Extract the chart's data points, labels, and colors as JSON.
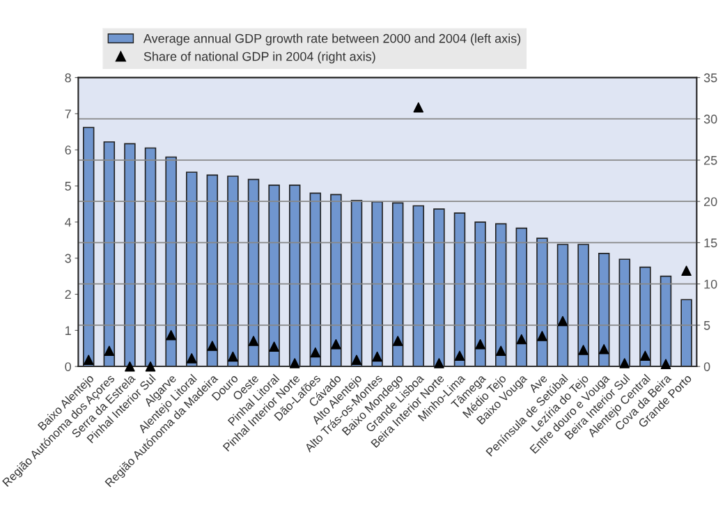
{
  "chart_data": {
    "type": "bar",
    "categories": [
      "Baixo Alentejo",
      "Região Autónoma dos Açores",
      "Serra da Estrela",
      "Pinhal Interior Sul",
      "Algarve",
      "Alentejo Litoral",
      "Região Autónoma da Madeira",
      "Douro",
      "Oeste",
      "Pinhal Litoral",
      "Pinhal Interior Norte",
      "Dão-Lafões",
      "Cávado",
      "Alto Alentejo",
      "Alto Trás-os-Montes",
      "Baixo Mondego",
      "Grande Lisboa",
      "Beira Interior Norte",
      "Minho-Lima",
      "Tâmega",
      "Médio Tejo",
      "Baixo Vouga",
      "Ave",
      "Península de Setúbal",
      "Lezíria do Tejo",
      "Entre douro e Vouga",
      "Beira Interior Sul",
      "Alentejo Central",
      "Cova da Beira",
      "Grande Porto"
    ],
    "series": [
      {
        "name": "Average annual GDP growth rate between 2000 and 2004 (left axis)",
        "color": "#7096cf",
        "values": [
          6.62,
          6.22,
          6.17,
          6.05,
          5.8,
          5.38,
          5.3,
          5.27,
          5.18,
          5.02,
          5.02,
          4.8,
          4.76,
          4.6,
          4.56,
          4.53,
          4.45,
          4.36,
          4.25,
          4.0,
          3.95,
          3.83,
          3.55,
          3.38,
          3.38,
          3.13,
          2.97,
          2.75,
          2.5,
          1.85
        ]
      },
      {
        "name": "Share of national GDP in 2004 (right axis)",
        "type": "scatter",
        "axis": "y2",
        "color": "#000000",
        "marker": "triangle",
        "values": [
          0.8,
          1.9,
          0,
          0,
          3.8,
          1.0,
          2.5,
          1.2,
          3.1,
          2.4,
          0.4,
          1.7,
          2.7,
          0.8,
          1.2,
          3.1,
          31.4,
          0.4,
          1.3,
          2.7,
          1.9,
          3.3,
          3.7,
          5.5,
          2.0,
          2.1,
          0.4,
          1.3,
          0.3,
          11.6
        ]
      }
    ],
    "ylim": [
      0,
      8
    ],
    "yticks": [
      0,
      1,
      2,
      3,
      4,
      5,
      6,
      7,
      8
    ],
    "y2lim": [
      0,
      35
    ],
    "y2ticks": [
      0,
      5,
      10,
      15,
      20,
      25,
      30,
      35
    ],
    "grid": "y",
    "legend": "top"
  }
}
